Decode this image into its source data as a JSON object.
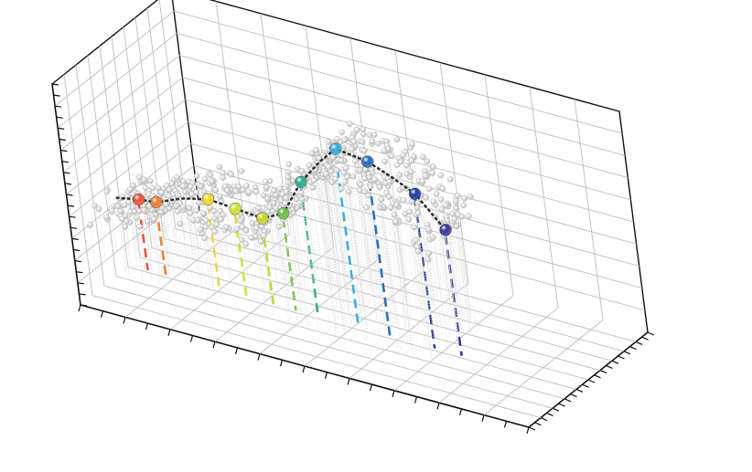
{
  "chart_data": {
    "type": "scatter",
    "title": "",
    "xlabel": "",
    "ylabel": "",
    "zlabel": "",
    "grid": true,
    "tick_labels_shown": false,
    "cloud_color": "#c4c4c4",
    "trend_line_color": "#2b2b2b",
    "markers": [
      {
        "x": 0.6,
        "value": 3.6,
        "color": "#e8553a"
      },
      {
        "x": 1.0,
        "value": 3.7,
        "color": "#ee7f2d"
      },
      {
        "x": 2.2,
        "value": 4.5,
        "color": "#f3d531"
      },
      {
        "x": 2.8,
        "value": 4.4,
        "color": "#cfe23a"
      },
      {
        "x": 3.4,
        "value": 4.3,
        "color": "#c8d62e"
      },
      {
        "x": 3.9,
        "value": 4.8,
        "color": "#6fbf4a"
      },
      {
        "x": 4.4,
        "value": 6.5,
        "color": "#2fae93"
      },
      {
        "x": 5.3,
        "value": 8.5,
        "color": "#3aaedb"
      },
      {
        "x": 6.0,
        "value": 8.3,
        "color": "#2a6fc0"
      },
      {
        "x": 7.0,
        "value": 7.4,
        "color": "#263f9e"
      },
      {
        "x": 7.6,
        "value": 6.1,
        "color": "#3f3796"
      }
    ],
    "trend": [
      {
        "x": 0.1,
        "value": 3.4
      },
      {
        "x": 0.6,
        "value": 3.6
      },
      {
        "x": 1.0,
        "value": 3.7
      },
      {
        "x": 1.6,
        "value": 4.2
      },
      {
        "x": 2.2,
        "value": 4.5
      },
      {
        "x": 2.8,
        "value": 4.4
      },
      {
        "x": 3.4,
        "value": 4.3
      },
      {
        "x": 3.9,
        "value": 4.8
      },
      {
        "x": 4.4,
        "value": 6.5
      },
      {
        "x": 4.9,
        "value": 7.7
      },
      {
        "x": 5.3,
        "value": 8.5
      },
      {
        "x": 6.0,
        "value": 8.3
      },
      {
        "x": 6.5,
        "value": 7.9
      },
      {
        "x": 7.0,
        "value": 7.4
      },
      {
        "x": 7.6,
        "value": 6.1
      }
    ],
    "xlim": [
      0,
      10
    ],
    "ylim": [
      0,
      10
    ],
    "zlim": [
      0,
      10
    ]
  }
}
